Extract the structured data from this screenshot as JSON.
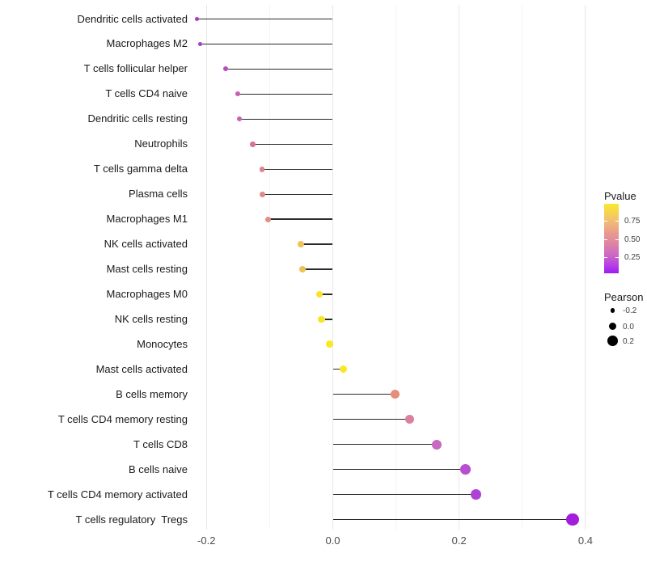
{
  "chart_data": {
    "type": "lollipop",
    "orientation": "horizontal",
    "title": "",
    "xlabel": "",
    "ylabel": "",
    "xlim": [
      -0.245,
      0.46
    ],
    "grid": "on",
    "x_major_ticks": [
      {
        "label": "-0.2",
        "value": -0.2
      },
      {
        "label": "0.0",
        "value": 0.0
      },
      {
        "label": "0.2",
        "value": 0.2
      },
      {
        "label": "0.4",
        "value": 0.4
      }
    ],
    "x_minor_ticks": [
      -0.1,
      0.1,
      0.3
    ],
    "categories": [
      "Dendritic cells activated",
      "Macrophages M2",
      "T cells follicular helper",
      "T cells CD4 naive",
      "Dendritic cells resting",
      "Neutrophils",
      "T cells gamma delta",
      "Plasma cells",
      "Macrophages M1",
      "NK cells activated",
      "Mast cells resting",
      "Macrophages M0",
      "NK cells resting",
      "Monocytes",
      "Mast cells activated",
      "B cells memory",
      "T cells CD4 memory resting",
      "T cells CD8",
      "B cells naive",
      "T cells CD4 memory activated",
      "T cells regulatory  Tregs"
    ],
    "series": [
      {
        "name": "Pearson",
        "values": [
          -0.215,
          -0.21,
          -0.17,
          -0.15,
          -0.148,
          -0.127,
          -0.112,
          -0.111,
          -0.102,
          -0.051,
          -0.048,
          -0.021,
          -0.018,
          -0.005,
          0.017,
          0.099,
          0.122,
          0.164,
          0.21,
          0.227,
          0.38
        ]
      }
    ],
    "point_colors": [
      "#a63ec5",
      "#a63ec5",
      "#bb4cbe",
      "#c55fb3",
      "#c764b1",
      "#d87490",
      "#de8290",
      "#e0888c",
      "#e18e85",
      "#edc35b",
      "#ecc156",
      "#f7e32c",
      "#f8e52a",
      "#fae922",
      "#f9e81f",
      "#e68e79",
      "#dc809e",
      "#c868be",
      "#b84fd0",
      "#ae41d6",
      "#a21edc"
    ],
    "stem_color": "#2a2a2a",
    "legend_position": "right"
  },
  "legends": {
    "pvalue": {
      "title": "Pvalue",
      "tick_labels": [
        "0.75",
        "0.50",
        "0.25"
      ],
      "gradient_top_color": "#fae92b",
      "gradient_mid_color": "#e89b8e",
      "gradient_bottom_color": "#a01af6"
    },
    "pearson": {
      "title": "Pearson",
      "items": [
        {
          "label": "-0.2",
          "value": -0.2
        },
        {
          "label": "0.0",
          "value": 0.0
        },
        {
          "label": "0.2",
          "value": 0.2
        }
      ]
    }
  }
}
